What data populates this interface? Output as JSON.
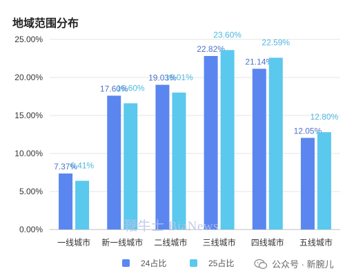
{
  "chart_data": {
    "type": "bar",
    "title": "地域范围分布",
    "categories": [
      "一线城市",
      "新一线城市",
      "二线城市",
      "三线城市",
      "四线城市",
      "五线城市"
    ],
    "series": [
      {
        "name": "24占比",
        "color": "#5B86F0",
        "values": [
          7.37,
          17.6,
          19.03,
          22.82,
          21.14,
          12.05
        ],
        "labels": [
          "7.37%",
          "17.60%",
          "19.03%",
          "22.82%",
          "21.14%",
          "12.05%"
        ]
      },
      {
        "name": "25占比",
        "color": "#5BC8EE",
        "values": [
          6.41,
          16.6,
          18.01,
          23.6,
          22.59,
          12.8
        ],
        "labels": [
          "6.41%",
          "16.60%",
          "18.01%",
          "23.60%",
          "22.59%",
          "12.80%"
        ]
      }
    ],
    "ylim": [
      0,
      25
    ],
    "yticks": [
      "0.00%",
      "5.00%",
      "10.00%",
      "15.00%",
      "20.00%",
      "25.00%"
    ],
    "grid": true,
    "legend": "bottom"
  },
  "watermark": "鞭牛士 BiaNews",
  "wechat_label": "公众号 · 新腕儿"
}
